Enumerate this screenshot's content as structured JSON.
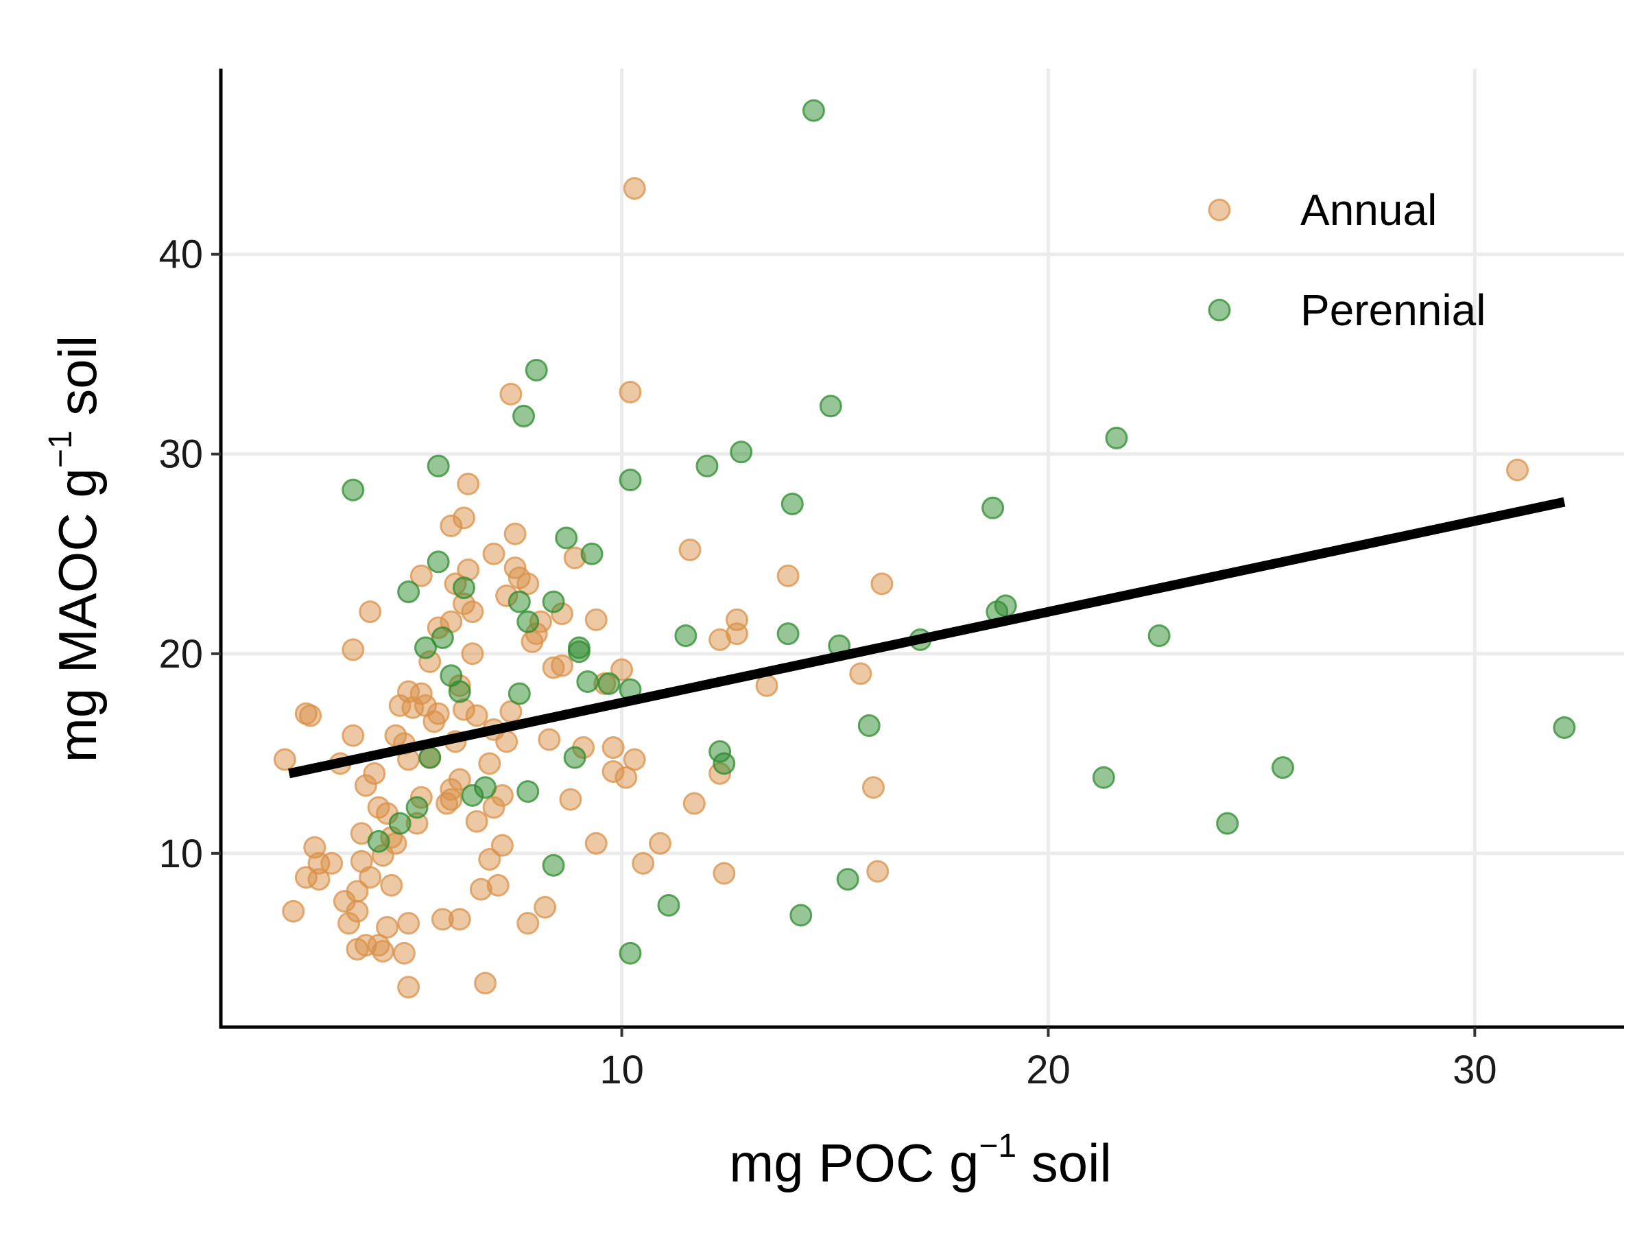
{
  "chart_data": {
    "type": "scatter",
    "title": "",
    "xlabel": "mg POC g⁻¹ soil",
    "ylabel": "mg MAOC g⁻¹ soil",
    "xlabel_parts": {
      "pre": "mg POC g",
      "sup": "−1",
      "post": " soil"
    },
    "ylabel_parts": {
      "pre": "mg MAOC g",
      "sup": "−1",
      "post": " soil"
    },
    "xlim": [
      0.6,
      33.5
    ],
    "ylim": [
      1.3,
      49.3
    ],
    "xticks": [
      10,
      20,
      30
    ],
    "yticks": [
      10,
      20,
      30,
      40
    ],
    "grid": true,
    "legend": {
      "position": "top-right"
    },
    "series": [
      {
        "name": "Annual",
        "color": "#D9914A",
        "points": [
          [
            2.1,
            14.7
          ],
          [
            2.3,
            7.1
          ],
          [
            2.6,
            17.0
          ],
          [
            2.7,
            16.9
          ],
          [
            2.6,
            8.8
          ],
          [
            2.8,
            10.3
          ],
          [
            2.9,
            9.5
          ],
          [
            2.9,
            8.7
          ],
          [
            3.2,
            9.5
          ],
          [
            3.5,
            7.6
          ],
          [
            3.4,
            14.5
          ],
          [
            3.7,
            15.9
          ],
          [
            3.7,
            20.2
          ],
          [
            3.6,
            6.5
          ],
          [
            3.8,
            7.1
          ],
          [
            3.8,
            5.2
          ],
          [
            3.8,
            8.1
          ],
          [
            3.9,
            11.0
          ],
          [
            3.9,
            9.6
          ],
          [
            4.0,
            13.4
          ],
          [
            4.1,
            22.1
          ],
          [
            4.0,
            5.4
          ],
          [
            4.1,
            8.8
          ],
          [
            4.2,
            14.0
          ],
          [
            4.3,
            12.3
          ],
          [
            4.3,
            5.4
          ],
          [
            4.4,
            9.9
          ],
          [
            4.4,
            5.1
          ],
          [
            4.5,
            12.0
          ],
          [
            4.5,
            6.3
          ],
          [
            4.6,
            8.4
          ],
          [
            4.6,
            10.8
          ],
          [
            4.7,
            15.9
          ],
          [
            4.7,
            10.5
          ],
          [
            4.8,
            17.4
          ],
          [
            4.9,
            15.5
          ],
          [
            5.0,
            18.1
          ],
          [
            5.0,
            14.7
          ],
          [
            5.0,
            6.5
          ],
          [
            4.9,
            5.0
          ],
          [
            5.0,
            3.3
          ],
          [
            5.1,
            17.3
          ],
          [
            5.2,
            11.5
          ],
          [
            5.3,
            18.0
          ],
          [
            5.3,
            12.8
          ],
          [
            5.3,
            23.9
          ],
          [
            5.4,
            17.4
          ],
          [
            5.5,
            19.6
          ],
          [
            5.5,
            14.8
          ],
          [
            5.6,
            16.6
          ],
          [
            5.7,
            21.3
          ],
          [
            5.7,
            17.0
          ],
          [
            5.8,
            6.7
          ],
          [
            5.9,
            12.5
          ],
          [
            6.0,
            12.7
          ],
          [
            6.0,
            13.2
          ],
          [
            6.0,
            21.6
          ],
          [
            6.0,
            26.4
          ],
          [
            6.1,
            23.5
          ],
          [
            6.1,
            15.6
          ],
          [
            6.2,
            13.7
          ],
          [
            6.2,
            18.4
          ],
          [
            6.2,
            6.7
          ],
          [
            6.3,
            17.2
          ],
          [
            6.3,
            26.8
          ],
          [
            6.3,
            22.5
          ],
          [
            6.4,
            28.5
          ],
          [
            6.4,
            24.2
          ],
          [
            6.5,
            20.0
          ],
          [
            6.5,
            22.1
          ],
          [
            6.6,
            11.6
          ],
          [
            6.6,
            16.9
          ],
          [
            6.7,
            8.2
          ],
          [
            6.8,
            3.5
          ],
          [
            6.9,
            9.7
          ],
          [
            6.9,
            14.5
          ],
          [
            7.0,
            16.2
          ],
          [
            7.0,
            12.3
          ],
          [
            7.0,
            25.0
          ],
          [
            7.1,
            8.4
          ],
          [
            7.2,
            12.9
          ],
          [
            7.2,
            10.4
          ],
          [
            7.3,
            15.6
          ],
          [
            7.3,
            22.9
          ],
          [
            7.4,
            17.1
          ],
          [
            7.4,
            33.0
          ],
          [
            7.5,
            26.0
          ],
          [
            7.5,
            24.3
          ],
          [
            7.6,
            23.8
          ],
          [
            7.8,
            23.5
          ],
          [
            7.8,
            6.5
          ],
          [
            7.9,
            20.6
          ],
          [
            8.0,
            21.0
          ],
          [
            8.1,
            21.6
          ],
          [
            8.2,
            7.3
          ],
          [
            8.3,
            15.7
          ],
          [
            8.4,
            19.3
          ],
          [
            8.6,
            22.0
          ],
          [
            8.6,
            19.4
          ],
          [
            8.8,
            12.7
          ],
          [
            8.9,
            24.8
          ],
          [
            9.1,
            15.3
          ],
          [
            9.4,
            10.5
          ],
          [
            9.4,
            21.7
          ],
          [
            9.6,
            18.5
          ],
          [
            9.8,
            15.3
          ],
          [
            9.8,
            14.1
          ],
          [
            10.0,
            19.2
          ],
          [
            10.1,
            13.8
          ],
          [
            10.2,
            33.1
          ],
          [
            10.3,
            14.7
          ],
          [
            10.3,
            43.3
          ],
          [
            10.5,
            9.5
          ],
          [
            10.9,
            10.5
          ],
          [
            11.6,
            25.2
          ],
          [
            11.7,
            12.5
          ],
          [
            12.3,
            14.0
          ],
          [
            12.3,
            20.7
          ],
          [
            12.4,
            9.0
          ],
          [
            12.7,
            21.7
          ],
          [
            12.7,
            21.0
          ],
          [
            13.4,
            18.4
          ],
          [
            13.9,
            23.9
          ],
          [
            15.6,
            19.0
          ],
          [
            15.9,
            13.3
          ],
          [
            16.0,
            9.1
          ],
          [
            16.1,
            23.5
          ],
          [
            31.0,
            29.2
          ]
        ]
      },
      {
        "name": "Perennial",
        "color": "#2E8B2E",
        "points": [
          [
            3.7,
            28.2
          ],
          [
            4.3,
            10.6
          ],
          [
            4.8,
            11.5
          ],
          [
            5.0,
            23.1
          ],
          [
            5.2,
            12.3
          ],
          [
            5.4,
            20.3
          ],
          [
            5.5,
            14.8
          ],
          [
            5.7,
            24.6
          ],
          [
            5.7,
            29.4
          ],
          [
            5.8,
            20.8
          ],
          [
            6.0,
            18.9
          ],
          [
            6.2,
            18.1
          ],
          [
            6.3,
            23.3
          ],
          [
            6.5,
            12.9
          ],
          [
            6.8,
            13.3
          ],
          [
            7.6,
            18.0
          ],
          [
            7.6,
            22.6
          ],
          [
            7.7,
            31.9
          ],
          [
            7.8,
            21.6
          ],
          [
            7.8,
            13.1
          ],
          [
            8.0,
            34.2
          ],
          [
            8.4,
            22.6
          ],
          [
            8.4,
            9.4
          ],
          [
            8.7,
            25.8
          ],
          [
            8.9,
            14.8
          ],
          [
            9.0,
            20.3
          ],
          [
            9.0,
            20.1
          ],
          [
            9.2,
            18.6
          ],
          [
            9.3,
            25.0
          ],
          [
            9.7,
            18.5
          ],
          [
            10.2,
            18.2
          ],
          [
            10.2,
            28.7
          ],
          [
            10.2,
            5.0
          ],
          [
            11.1,
            7.4
          ],
          [
            11.5,
            20.9
          ],
          [
            12.0,
            29.4
          ],
          [
            12.3,
            15.1
          ],
          [
            12.4,
            14.5
          ],
          [
            12.8,
            30.1
          ],
          [
            13.9,
            21.0
          ],
          [
            14.0,
            27.5
          ],
          [
            14.2,
            6.9
          ],
          [
            14.5,
            47.2
          ],
          [
            14.9,
            32.4
          ],
          [
            15.1,
            20.4
          ],
          [
            15.3,
            8.7
          ],
          [
            15.8,
            16.4
          ],
          [
            17.0,
            20.7
          ],
          [
            18.7,
            27.3
          ],
          [
            18.8,
            22.1
          ],
          [
            19.0,
            22.4
          ],
          [
            21.3,
            13.8
          ],
          [
            21.6,
            30.8
          ],
          [
            22.6,
            20.9
          ],
          [
            24.2,
            11.5
          ],
          [
            25.5,
            14.3
          ],
          [
            32.1,
            16.3
          ]
        ]
      }
    ],
    "trend_line": {
      "x": [
        2.2,
        32.1
      ],
      "y": [
        14.0,
        27.6
      ],
      "color": "#000000"
    }
  }
}
